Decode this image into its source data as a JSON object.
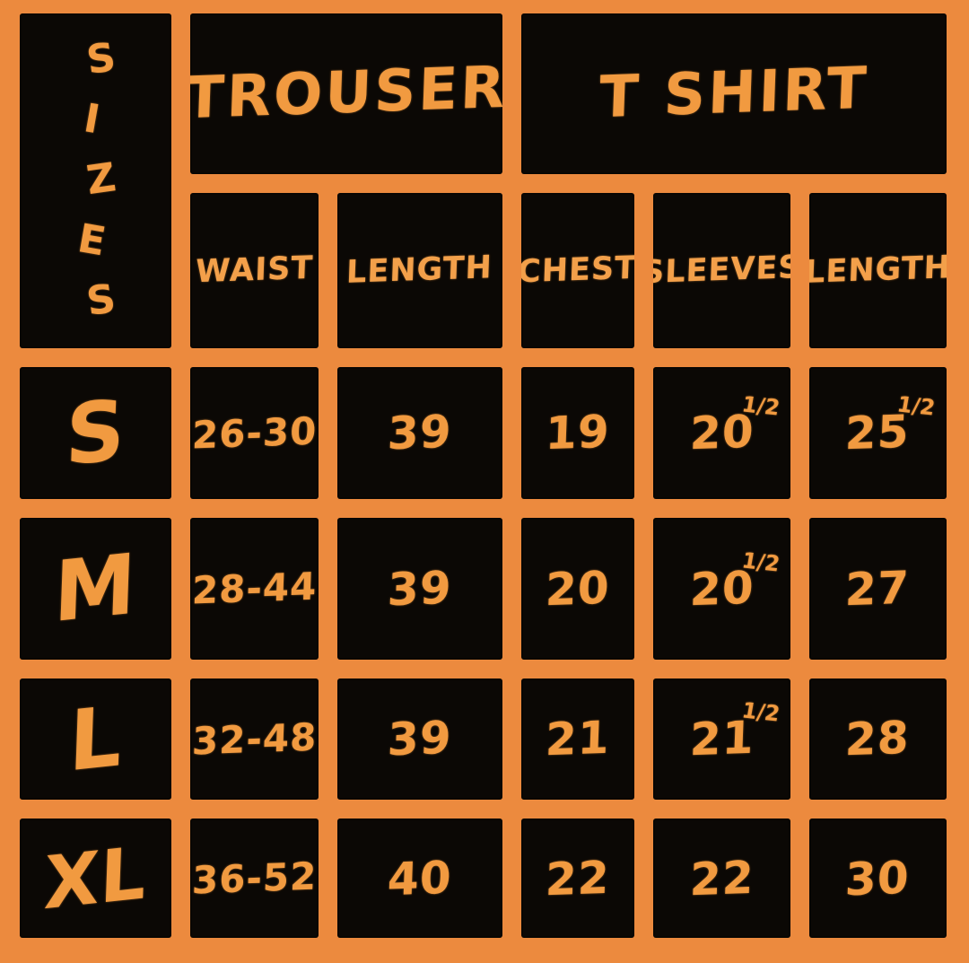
{
  "palette": {
    "background_orange": "#ec8a3e",
    "cell_black": "#0b0805",
    "text_orange": "#f19a40",
    "header_text_orange": "#f3a04a"
  },
  "table": {
    "corner_label": "SIZES",
    "corner_letters": [
      "S",
      "I",
      "Z",
      "E",
      "S"
    ],
    "groups": [
      {
        "label": "TROUSER"
      },
      {
        "label": "T SHIRT"
      }
    ],
    "columns": [
      "WAIST",
      "LENGTH",
      "CHEST",
      "SLEEVES",
      "LENGTH"
    ],
    "rows": [
      {
        "size": "S",
        "cells": [
          {
            "main": "26-30"
          },
          {
            "main": "39"
          },
          {
            "main": "19"
          },
          {
            "main": "20",
            "sup": "1/2"
          },
          {
            "main": "25",
            "sup": "1/2"
          }
        ]
      },
      {
        "size": "M",
        "cells": [
          {
            "main": "28-44"
          },
          {
            "main": "39"
          },
          {
            "main": "20"
          },
          {
            "main": "20",
            "sup": "1/2"
          },
          {
            "main": "27"
          }
        ]
      },
      {
        "size": "L",
        "cells": [
          {
            "main": "32-48"
          },
          {
            "main": "39"
          },
          {
            "main": "21"
          },
          {
            "main": "21",
            "sup": "1/2"
          },
          {
            "main": "28"
          }
        ]
      },
      {
        "size": "XL",
        "cells": [
          {
            "main": "36-52"
          },
          {
            "main": "40"
          },
          {
            "main": "22"
          },
          {
            "main": "22"
          },
          {
            "main": "30"
          }
        ]
      }
    ]
  },
  "chart_data": {
    "type": "table",
    "title": "SIZES",
    "column_groups": [
      {
        "group": "TROUSER",
        "columns": [
          "WAIST",
          "LENGTH"
        ]
      },
      {
        "group": "T SHIRT",
        "columns": [
          "CHEST",
          "SLEEVES",
          "LENGTH"
        ]
      }
    ],
    "row_header": "SIZES",
    "rows": [
      {
        "size": "S",
        "trouser_waist": "26-30",
        "trouser_length": 39,
        "tshirt_chest": 19,
        "tshirt_sleeves": 20.5,
        "tshirt_length": 25.5
      },
      {
        "size": "M",
        "trouser_waist": "28-44",
        "trouser_length": 39,
        "tshirt_chest": 20,
        "tshirt_sleeves": 20.5,
        "tshirt_length": 27
      },
      {
        "size": "L",
        "trouser_waist": "32-48",
        "trouser_length": 39,
        "tshirt_chest": 21,
        "tshirt_sleeves": 21.5,
        "tshirt_length": 28
      },
      {
        "size": "XL",
        "trouser_waist": "36-52",
        "trouser_length": 40,
        "tshirt_chest": 22,
        "tshirt_sleeves": 22,
        "tshirt_length": 30
      }
    ]
  }
}
